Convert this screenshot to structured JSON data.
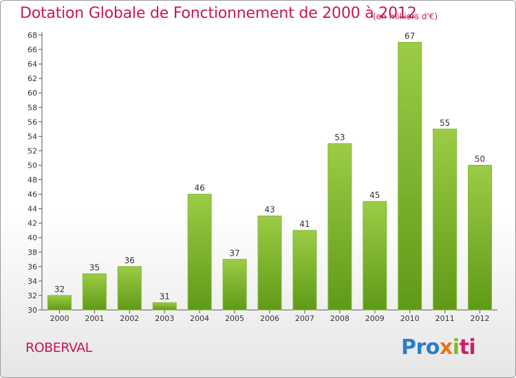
{
  "title": "Dotation Globale de Fonctionnement de 2000 à 2012",
  "subtitle": "(en milliers d'€)",
  "commune": "ROBERVAL",
  "logo": {
    "p1": "Pro",
    "p2": "x",
    "p3": "i",
    "p4": "ti"
  },
  "colors": {
    "bar_light": "#9ccc45",
    "bar_dark": "#5f9a17",
    "title": "#c2185b"
  },
  "chart_data": {
    "type": "bar",
    "categories": [
      "2000",
      "2001",
      "2002",
      "2003",
      "2004",
      "2005",
      "2006",
      "2007",
      "2008",
      "2009",
      "2010",
      "2011",
      "2012"
    ],
    "values": [
      32,
      35,
      36,
      31,
      46,
      37,
      43,
      41,
      53,
      45,
      67,
      55,
      50
    ],
    "ylim": [
      30,
      68
    ],
    "yticks": [
      30,
      32,
      34,
      36,
      38,
      40,
      42,
      44,
      46,
      48,
      50,
      52,
      54,
      56,
      58,
      60,
      62,
      64,
      66,
      68
    ],
    "grid": false,
    "legend": "none",
    "xlabel": "",
    "ylabel": ""
  }
}
